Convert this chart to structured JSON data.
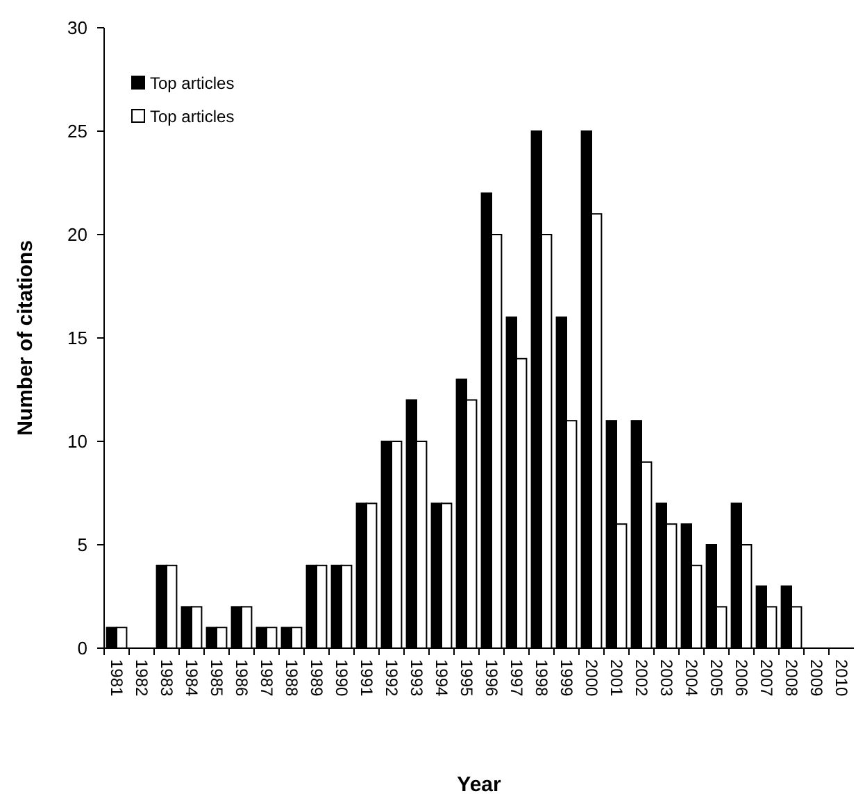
{
  "chart_data": {
    "type": "bar",
    "xlabel": "Year",
    "ylabel": "Number of citations",
    "categories": [
      "1981",
      "1982",
      "1983",
      "1984",
      "1985",
      "1986",
      "1987",
      "1988",
      "1989",
      "1990",
      "1991",
      "1992",
      "1993",
      "1994",
      "1995",
      "1996",
      "1997",
      "1998",
      "1999",
      "2000",
      "2001",
      "2002",
      "2003",
      "2004",
      "2005",
      "2006",
      "2007",
      "2008",
      "2009",
      "2010"
    ],
    "series": [
      {
        "name": "Top articles",
        "color": "#000000",
        "values": [
          1,
          0,
          4,
          2,
          1,
          2,
          1,
          1,
          4,
          4,
          7,
          10,
          12,
          7,
          13,
          22,
          16,
          25,
          16,
          25,
          11,
          11,
          7,
          6,
          5,
          7,
          3,
          3,
          0,
          0
        ]
      },
      {
        "name": "Top articles",
        "color": "#ffffff",
        "values": [
          1,
          0,
          4,
          2,
          1,
          2,
          1,
          1,
          4,
          4,
          7,
          10,
          10,
          7,
          12,
          20,
          14,
          20,
          11,
          21,
          6,
          9,
          6,
          4,
          2,
          5,
          2,
          2,
          0,
          0
        ]
      }
    ],
    "ylim": [
      0,
      30
    ],
    "yticks": [
      0,
      5,
      10,
      15,
      20,
      25,
      30
    ],
    "grid": false,
    "legend": "top left"
  }
}
